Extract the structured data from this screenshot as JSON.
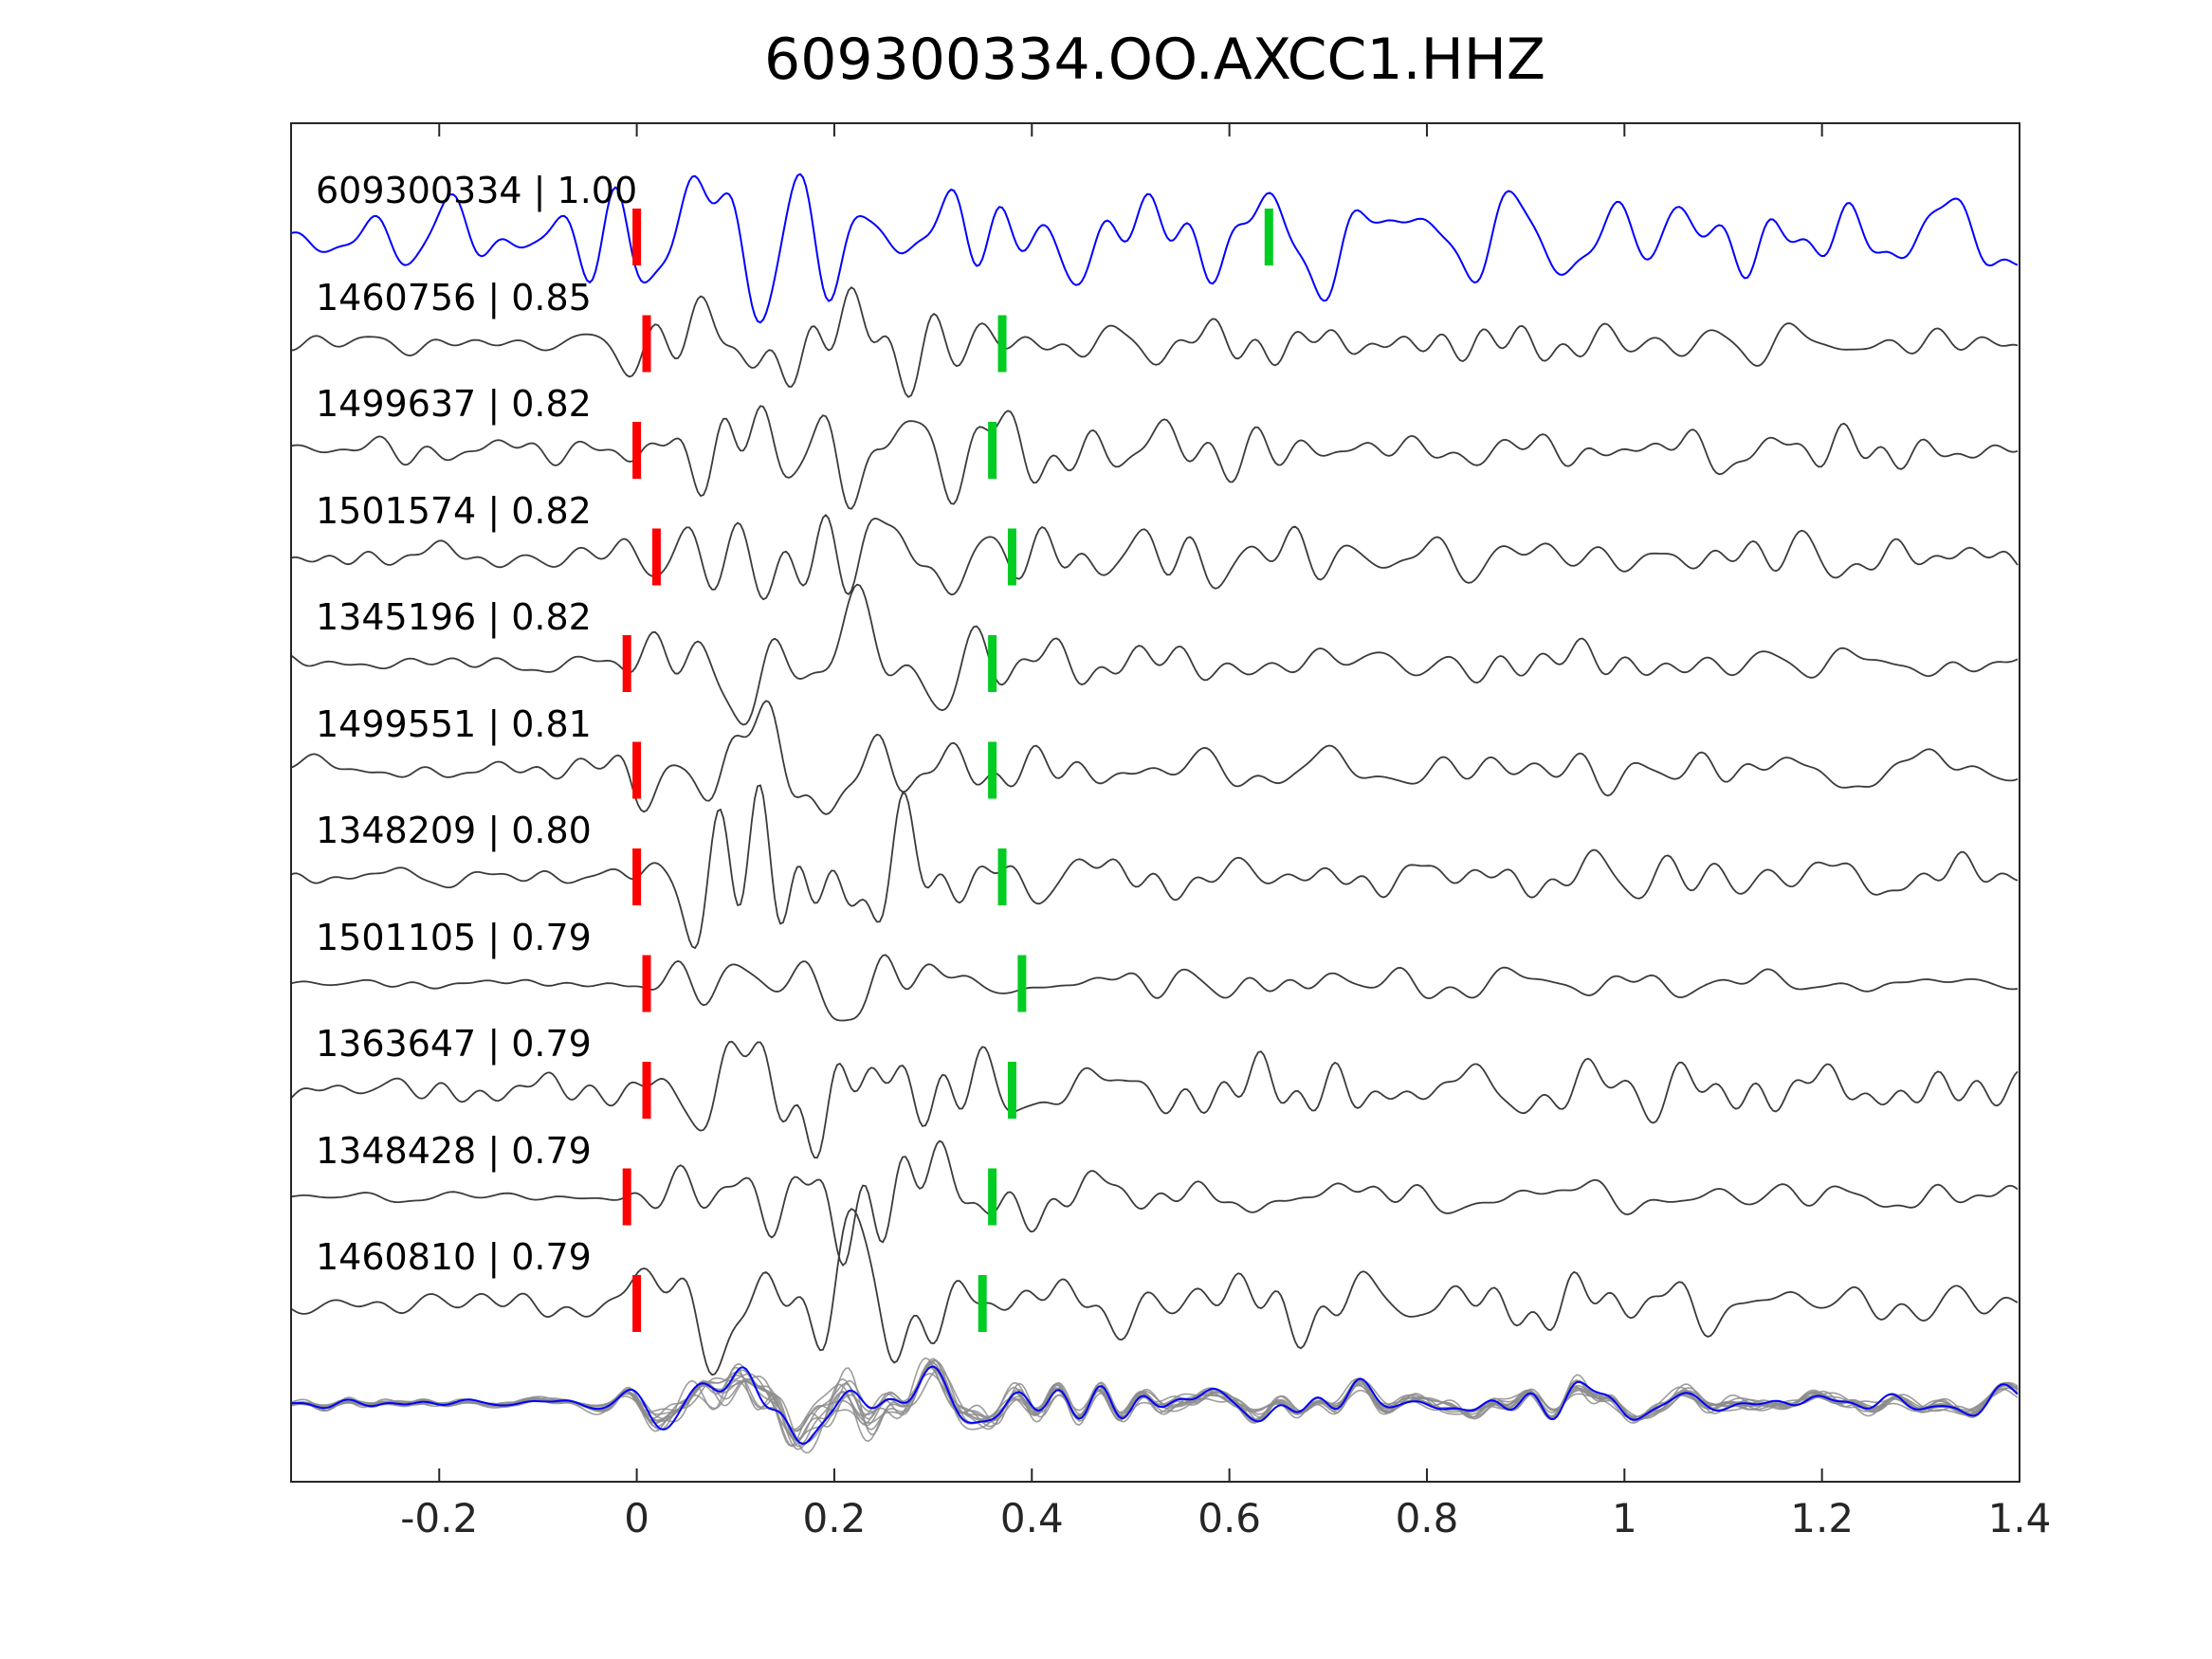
{
  "title": "609300334.OO.AXCC1.HHZ",
  "axis": {
    "xlim": [
      -0.35,
      1.4
    ],
    "xticks": [
      -0.2,
      0,
      0.2,
      0.4,
      0.6,
      0.8,
      1,
      1.2,
      1.4
    ],
    "xtick_labels": [
      "-0.2",
      "0",
      "0.2",
      "0.4",
      "0.6",
      "0.8",
      "1",
      "1.2",
      "1.4"
    ]
  },
  "colors": {
    "template_trace": "#0000ff",
    "detection_trace": "#3b3b3b",
    "overlay_trace": "#8c8c8c",
    "pick_red": "#ff0000",
    "pick_green": "#00cc22",
    "axis": "#262626",
    "background": "#ffffff"
  },
  "chart_data": {
    "type": "line",
    "title": "609300334.OO.AXCC1.HHZ",
    "xlim": [
      -0.35,
      1.4
    ],
    "xticks": [
      -0.2,
      0,
      0.2,
      0.4,
      0.6,
      0.8,
      1,
      1.2,
      1.4
    ],
    "description": "Stacked seismic waveform traces: blue template event and gray cross-correlation detections labeled 'event_id | correlation'; red vertical bar = pick near t=0, green vertical bar = secondary pick; bottom row overlays all detection traces (gray) with the template (blue).",
    "traces": [
      {
        "label": "609300334 | 1.00",
        "event_id": "609300334",
        "correlation": 1.0,
        "style": "template",
        "pick_red_t": 0.0,
        "pick_green_t": 0.64
      },
      {
        "label": "1460756 | 0.85",
        "event_id": "1460756",
        "correlation": 0.85,
        "style": "detection",
        "pick_red_t": 0.01,
        "pick_green_t": 0.37
      },
      {
        "label": "1499637 | 0.82",
        "event_id": "1499637",
        "correlation": 0.82,
        "style": "detection",
        "pick_red_t": 0.0,
        "pick_green_t": 0.36
      },
      {
        "label": "1501574 | 0.82",
        "event_id": "1501574",
        "correlation": 0.82,
        "style": "detection",
        "pick_red_t": 0.02,
        "pick_green_t": 0.38
      },
      {
        "label": "1345196 | 0.82",
        "event_id": "1345196",
        "correlation": 0.82,
        "style": "detection",
        "pick_red_t": -0.01,
        "pick_green_t": 0.36
      },
      {
        "label": "1499551 | 0.81",
        "event_id": "1499551",
        "correlation": 0.81,
        "style": "detection",
        "pick_red_t": 0.0,
        "pick_green_t": 0.36
      },
      {
        "label": "1348209 | 0.80",
        "event_id": "1348209",
        "correlation": 0.8,
        "style": "detection",
        "pick_red_t": 0.0,
        "pick_green_t": 0.37
      },
      {
        "label": "1501105 | 0.79",
        "event_id": "1501105",
        "correlation": 0.79,
        "style": "detection",
        "pick_red_t": 0.01,
        "pick_green_t": 0.39
      },
      {
        "label": "1363647 | 0.79",
        "event_id": "1363647",
        "correlation": 0.79,
        "style": "detection",
        "pick_red_t": 0.01,
        "pick_green_t": 0.38
      },
      {
        "label": "1348428 | 0.79",
        "event_id": "1348428",
        "correlation": 0.79,
        "style": "detection",
        "pick_red_t": -0.01,
        "pick_green_t": 0.36
      },
      {
        "label": "1460810 | 0.79",
        "event_id": "1460810",
        "correlation": 0.79,
        "style": "detection",
        "pick_red_t": 0.0,
        "pick_green_t": 0.35
      }
    ],
    "overlay_row": {
      "gray_trace_count": 11,
      "has_blue_template": true
    }
  }
}
